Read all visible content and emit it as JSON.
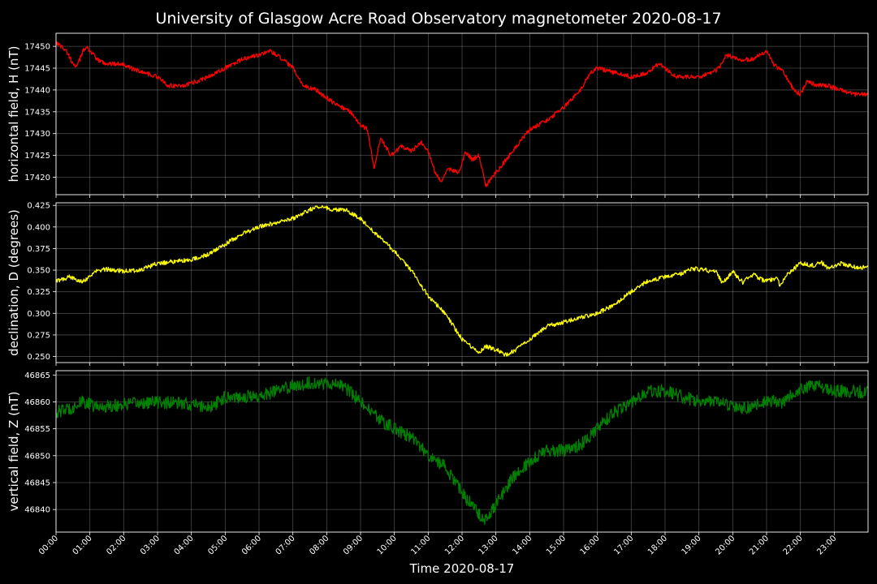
{
  "chart_data": {
    "type": "line",
    "title": "University of Glasgow Acre Road Observatory magnetometer 2020-08-17",
    "xlabel": "Time 2020-08-17",
    "x_ticks": [
      "00:00",
      "01:00",
      "02:00",
      "03:00",
      "04:00",
      "05:00",
      "06:00",
      "07:00",
      "08:00",
      "09:00",
      "10:00",
      "11:00",
      "12:00",
      "13:00",
      "14:00",
      "15:00",
      "16:00",
      "17:00",
      "18:00",
      "19:00",
      "20:00",
      "21:00",
      "22:00",
      "23:00"
    ],
    "xlim_hours": [
      0,
      24
    ],
    "grid": true,
    "panels": [
      {
        "ylabel": "horizontal field, H (nT)",
        "color": "#ff0000",
        "ylim": [
          17416,
          17453
        ],
        "yticks": [
          17420,
          17425,
          17430,
          17435,
          17440,
          17445,
          17450
        ],
        "tick_labels": [
          "17420",
          "17425",
          "17430",
          "17435",
          "17440",
          "17445",
          "17450"
        ],
        "noise": 0.5,
        "series": [
          {
            "x": 0.0,
            "y": 17451
          },
          {
            "x": 0.3,
            "y": 17449
          },
          {
            "x": 0.5,
            "y": 17446
          },
          {
            "x": 0.6,
            "y": 17445
          },
          {
            "x": 0.8,
            "y": 17449
          },
          {
            "x": 0.9,
            "y": 17450
          },
          {
            "x": 1.2,
            "y": 17447
          },
          {
            "x": 1.5,
            "y": 17446
          },
          {
            "x": 2.0,
            "y": 17446
          },
          {
            "x": 2.2,
            "y": 17445
          },
          {
            "x": 2.6,
            "y": 17444
          },
          {
            "x": 3.0,
            "y": 17443
          },
          {
            "x": 3.3,
            "y": 17441
          },
          {
            "x": 3.8,
            "y": 17441
          },
          {
            "x": 4.5,
            "y": 17443
          },
          {
            "x": 5.0,
            "y": 17445
          },
          {
            "x": 5.5,
            "y": 17447
          },
          {
            "x": 6.0,
            "y": 17448
          },
          {
            "x": 6.3,
            "y": 17449
          },
          {
            "x": 6.7,
            "y": 17447
          },
          {
            "x": 7.0,
            "y": 17445
          },
          {
            "x": 7.3,
            "y": 17441
          },
          {
            "x": 7.7,
            "y": 17440
          },
          {
            "x": 8.2,
            "y": 17437
          },
          {
            "x": 8.7,
            "y": 17435
          },
          {
            "x": 9.0,
            "y": 17432
          },
          {
            "x": 9.2,
            "y": 17431
          },
          {
            "x": 9.4,
            "y": 17422
          },
          {
            "x": 9.6,
            "y": 17429
          },
          {
            "x": 9.9,
            "y": 17425
          },
          {
            "x": 10.2,
            "y": 17427
          },
          {
            "x": 10.5,
            "y": 17426
          },
          {
            "x": 10.8,
            "y": 17428
          },
          {
            "x": 11.0,
            "y": 17426
          },
          {
            "x": 11.2,
            "y": 17421
          },
          {
            "x": 11.4,
            "y": 17419
          },
          {
            "x": 11.6,
            "y": 17422
          },
          {
            "x": 11.9,
            "y": 17421
          },
          {
            "x": 12.1,
            "y": 17426
          },
          {
            "x": 12.3,
            "y": 17424
          },
          {
            "x": 12.5,
            "y": 17425
          },
          {
            "x": 12.7,
            "y": 17418
          },
          {
            "x": 13.0,
            "y": 17421
          },
          {
            "x": 13.5,
            "y": 17426
          },
          {
            "x": 14.0,
            "y": 17431
          },
          {
            "x": 14.5,
            "y": 17433
          },
          {
            "x": 15.0,
            "y": 17436
          },
          {
            "x": 15.5,
            "y": 17440
          },
          {
            "x": 15.8,
            "y": 17444
          },
          {
            "x": 16.0,
            "y": 17445
          },
          {
            "x": 16.5,
            "y": 17444
          },
          {
            "x": 17.0,
            "y": 17443
          },
          {
            "x": 17.5,
            "y": 17444
          },
          {
            "x": 17.8,
            "y": 17446
          },
          {
            "x": 18.0,
            "y": 17445
          },
          {
            "x": 18.3,
            "y": 17443
          },
          {
            "x": 19.0,
            "y": 17443
          },
          {
            "x": 19.4,
            "y": 17444
          },
          {
            "x": 19.6,
            "y": 17445
          },
          {
            "x": 19.8,
            "y": 17448
          },
          {
            "x": 20.2,
            "y": 17447
          },
          {
            "x": 20.6,
            "y": 17447
          },
          {
            "x": 20.8,
            "y": 17448
          },
          {
            "x": 21.0,
            "y": 17449
          },
          {
            "x": 21.2,
            "y": 17446
          },
          {
            "x": 21.5,
            "y": 17444
          },
          {
            "x": 21.8,
            "y": 17440
          },
          {
            "x": 22.0,
            "y": 17439
          },
          {
            "x": 22.2,
            "y": 17442
          },
          {
            "x": 22.5,
            "y": 17441
          },
          {
            "x": 22.8,
            "y": 17441
          },
          {
            "x": 23.2,
            "y": 17440
          },
          {
            "x": 23.6,
            "y": 17439
          },
          {
            "x": 24.0,
            "y": 17439
          }
        ]
      },
      {
        "ylabel": "declination, D (degrees)",
        "color": "#ffff00",
        "ylim": [
          0.243,
          0.428
        ],
        "yticks": [
          0.25,
          0.275,
          0.3,
          0.325,
          0.35,
          0.375,
          0.4,
          0.425
        ],
        "tick_labels": [
          "0.250",
          "0.275",
          "0.300",
          "0.325",
          "0.350",
          "0.375",
          "0.400",
          "0.425"
        ],
        "noise": 0.0025,
        "series": [
          {
            "x": 0.0,
            "y": 0.337
          },
          {
            "x": 0.4,
            "y": 0.342
          },
          {
            "x": 0.8,
            "y": 0.337
          },
          {
            "x": 1.2,
            "y": 0.349
          },
          {
            "x": 1.5,
            "y": 0.351
          },
          {
            "x": 2.0,
            "y": 0.349
          },
          {
            "x": 2.5,
            "y": 0.35
          },
          {
            "x": 3.0,
            "y": 0.358
          },
          {
            "x": 3.5,
            "y": 0.36
          },
          {
            "x": 4.0,
            "y": 0.362
          },
          {
            "x": 4.5,
            "y": 0.368
          },
          {
            "x": 5.0,
            "y": 0.38
          },
          {
            "x": 5.5,
            "y": 0.392
          },
          {
            "x": 6.0,
            "y": 0.4
          },
          {
            "x": 6.5,
            "y": 0.405
          },
          {
            "x": 7.0,
            "y": 0.41
          },
          {
            "x": 7.5,
            "y": 0.42
          },
          {
            "x": 7.8,
            "y": 0.424
          },
          {
            "x": 8.2,
            "y": 0.42
          },
          {
            "x": 8.6,
            "y": 0.419
          },
          {
            "x": 9.0,
            "y": 0.41
          },
          {
            "x": 9.5,
            "y": 0.39
          },
          {
            "x": 10.0,
            "y": 0.372
          },
          {
            "x": 10.5,
            "y": 0.35
          },
          {
            "x": 11.0,
            "y": 0.32
          },
          {
            "x": 11.5,
            "y": 0.3
          },
          {
            "x": 12.0,
            "y": 0.27
          },
          {
            "x": 12.5,
            "y": 0.254
          },
          {
            "x": 12.7,
            "y": 0.262
          },
          {
            "x": 13.0,
            "y": 0.258
          },
          {
            "x": 13.3,
            "y": 0.252
          },
          {
            "x": 13.6,
            "y": 0.258
          },
          {
            "x": 14.0,
            "y": 0.27
          },
          {
            "x": 14.5,
            "y": 0.285
          },
          {
            "x": 15.0,
            "y": 0.29
          },
          {
            "x": 15.5,
            "y": 0.295
          },
          {
            "x": 16.0,
            "y": 0.3
          },
          {
            "x": 16.5,
            "y": 0.31
          },
          {
            "x": 17.0,
            "y": 0.325
          },
          {
            "x": 17.5,
            "y": 0.338
          },
          {
            "x": 18.0,
            "y": 0.342
          },
          {
            "x": 18.5,
            "y": 0.346
          },
          {
            "x": 18.8,
            "y": 0.352
          },
          {
            "x": 19.2,
            "y": 0.35
          },
          {
            "x": 19.5,
            "y": 0.348
          },
          {
            "x": 19.7,
            "y": 0.335
          },
          {
            "x": 20.0,
            "y": 0.348
          },
          {
            "x": 20.3,
            "y": 0.336
          },
          {
            "x": 20.6,
            "y": 0.345
          },
          {
            "x": 20.9,
            "y": 0.338
          },
          {
            "x": 21.3,
            "y": 0.34
          },
          {
            "x": 21.4,
            "y": 0.332
          },
          {
            "x": 21.6,
            "y": 0.345
          },
          {
            "x": 22.0,
            "y": 0.358
          },
          {
            "x": 22.4,
            "y": 0.355
          },
          {
            "x": 22.6,
            "y": 0.36
          },
          {
            "x": 22.8,
            "y": 0.352
          },
          {
            "x": 23.2,
            "y": 0.358
          },
          {
            "x": 23.6,
            "y": 0.354
          },
          {
            "x": 24.0,
            "y": 0.353
          }
        ]
      },
      {
        "ylabel": "vertical field, Z (nT)",
        "color": "#008000",
        "ylim": [
          46835.8,
          46865.8
        ],
        "yticks": [
          46840,
          46845,
          46850,
          46855,
          46860,
          46865
        ],
        "tick_labels": [
          "46840",
          "46845",
          "46850",
          "46855",
          "46860",
          "46865"
        ],
        "noise": 1.2,
        "series": [
          {
            "x": 0.0,
            "y": 46858
          },
          {
            "x": 0.5,
            "y": 46859
          },
          {
            "x": 0.8,
            "y": 46860
          },
          {
            "x": 1.2,
            "y": 46859
          },
          {
            "x": 2.0,
            "y": 46859.5
          },
          {
            "x": 3.0,
            "y": 46860
          },
          {
            "x": 4.0,
            "y": 46859.5
          },
          {
            "x": 4.6,
            "y": 46859
          },
          {
            "x": 5.0,
            "y": 46861
          },
          {
            "x": 5.5,
            "y": 46861
          },
          {
            "x": 6.0,
            "y": 46861
          },
          {
            "x": 6.5,
            "y": 46862
          },
          {
            "x": 7.0,
            "y": 46863
          },
          {
            "x": 7.5,
            "y": 46863.5
          },
          {
            "x": 8.0,
            "y": 46863.5
          },
          {
            "x": 8.5,
            "y": 46863
          },
          {
            "x": 9.0,
            "y": 46860
          },
          {
            "x": 9.5,
            "y": 46857
          },
          {
            "x": 10.0,
            "y": 46855
          },
          {
            "x": 10.5,
            "y": 46853.5
          },
          {
            "x": 11.0,
            "y": 46850
          },
          {
            "x": 11.5,
            "y": 46848
          },
          {
            "x": 12.0,
            "y": 46843
          },
          {
            "x": 12.4,
            "y": 46840
          },
          {
            "x": 12.7,
            "y": 46838
          },
          {
            "x": 13.0,
            "y": 46841
          },
          {
            "x": 13.5,
            "y": 46846
          },
          {
            "x": 14.0,
            "y": 46849
          },
          {
            "x": 14.5,
            "y": 46851
          },
          {
            "x": 15.0,
            "y": 46851
          },
          {
            "x": 15.5,
            "y": 46852
          },
          {
            "x": 16.0,
            "y": 46855
          },
          {
            "x": 16.5,
            "y": 46858
          },
          {
            "x": 17.0,
            "y": 46860
          },
          {
            "x": 17.5,
            "y": 46862
          },
          {
            "x": 18.0,
            "y": 46862
          },
          {
            "x": 18.5,
            "y": 46861
          },
          {
            "x": 19.0,
            "y": 46860
          },
          {
            "x": 19.5,
            "y": 46860
          },
          {
            "x": 20.0,
            "y": 46859
          },
          {
            "x": 20.5,
            "y": 46859
          },
          {
            "x": 21.0,
            "y": 46860
          },
          {
            "x": 21.5,
            "y": 46860
          },
          {
            "x": 22.0,
            "y": 46862.5
          },
          {
            "x": 22.5,
            "y": 46863
          },
          {
            "x": 23.0,
            "y": 46862
          },
          {
            "x": 23.5,
            "y": 46862
          },
          {
            "x": 24.0,
            "y": 46861.8
          }
        ]
      }
    ]
  }
}
